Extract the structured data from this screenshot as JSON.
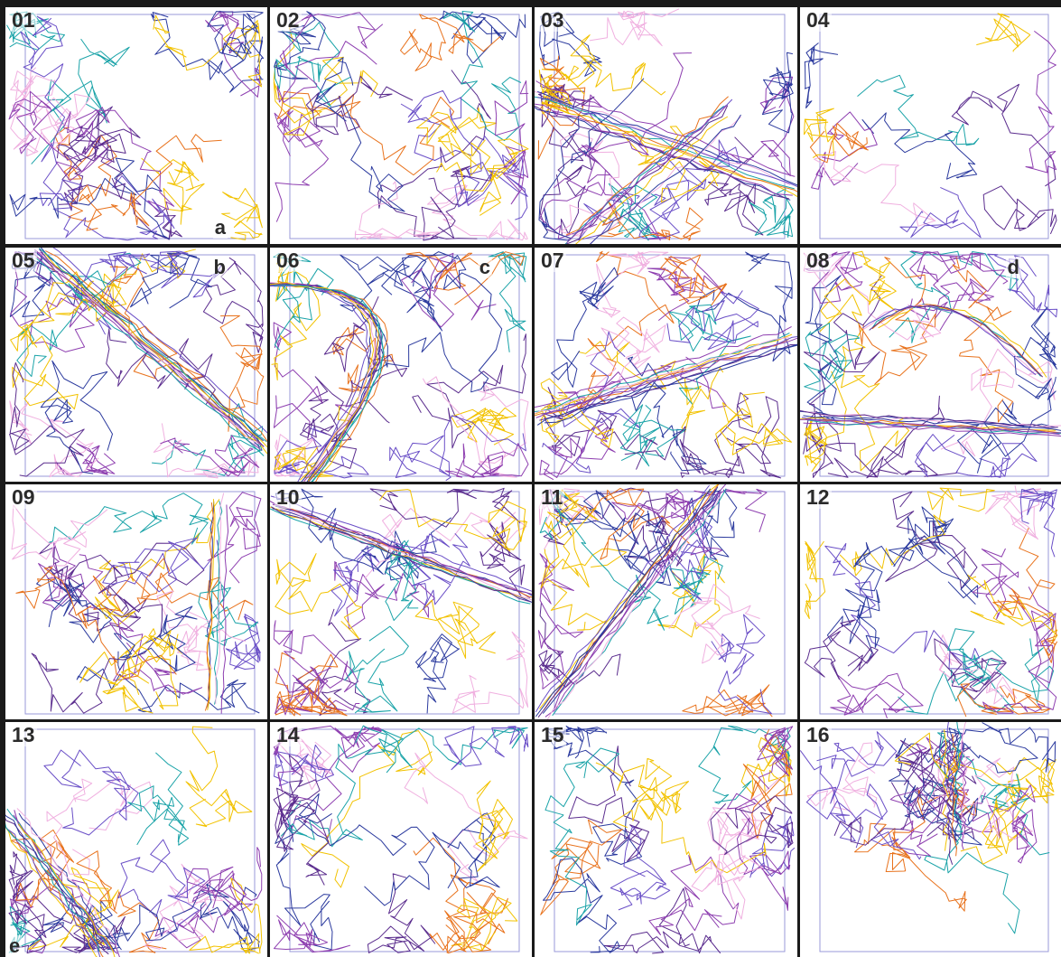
{
  "panels": [
    {
      "number": "01",
      "letter": "a",
      "letter_pos": "bottom-right",
      "feature": "dense"
    },
    {
      "number": "02",
      "letter": "",
      "letter_pos": "",
      "feature": "dense"
    },
    {
      "number": "03",
      "letter": "",
      "letter_pos": "",
      "feature": "crossing-diagonals"
    },
    {
      "number": "04",
      "letter": "",
      "letter_pos": "",
      "feature": "sparse"
    },
    {
      "number": "05",
      "letter": "b",
      "letter_pos": "top-right",
      "feature": "diagonal-down"
    },
    {
      "number": "06",
      "letter": "c",
      "letter_pos": "top-right",
      "feature": "curve"
    },
    {
      "number": "07",
      "letter": "",
      "letter_pos": "",
      "feature": "diagonal-up-shallow"
    },
    {
      "number": "08",
      "letter": "d",
      "letter_pos": "top-right",
      "feature": "horizontal-band"
    },
    {
      "number": "09",
      "letter": "",
      "letter_pos": "",
      "feature": "square-loop"
    },
    {
      "number": "10",
      "letter": "",
      "letter_pos": "",
      "feature": "diagonal-down-shallow"
    },
    {
      "number": "11",
      "letter": "",
      "letter_pos": "",
      "feature": "diagonal-up-steep"
    },
    {
      "number": "12",
      "letter": "",
      "letter_pos": "",
      "feature": "dense"
    },
    {
      "number": "13",
      "letter": "e",
      "letter_pos": "bottom-left",
      "feature": "corner-cluster"
    },
    {
      "number": "14",
      "letter": "",
      "letter_pos": "",
      "feature": "dense"
    },
    {
      "number": "15",
      "letter": "",
      "letter_pos": "",
      "feature": "dense"
    },
    {
      "number": "16",
      "letter": "",
      "letter_pos": "",
      "feature": "center-cluster"
    }
  ],
  "colors": {
    "background": "#ffffff",
    "frame": "#1a1a1a",
    "arena_outline": "#9a9ad8",
    "traces": [
      "#5b2d8e",
      "#2b3a9e",
      "#8e3fb0",
      "#f2c200",
      "#1aa3a8",
      "#e8721c",
      "#f0b0e0",
      "#6a4fc7"
    ]
  }
}
